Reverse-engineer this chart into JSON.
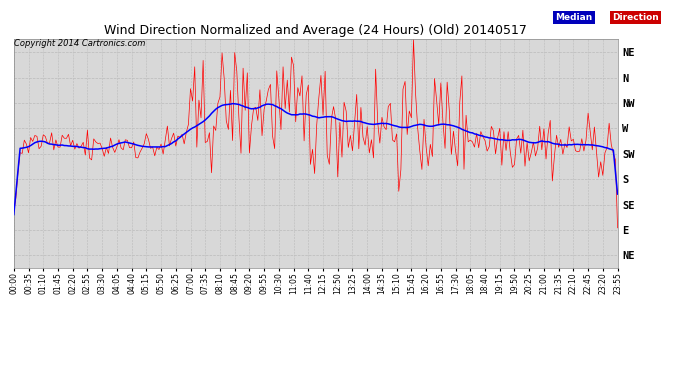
{
  "title": "Wind Direction Normalized and Average (24 Hours) (Old) 20140517",
  "copyright": "Copyright 2014 Cartronics.com",
  "background_color": "#ffffff",
  "plot_bg_color": "#d8d8d8",
  "y_labels": [
    "NE",
    "N",
    "NW",
    "W",
    "SW",
    "S",
    "SE",
    "E",
    "NE"
  ],
  "y_ticks": [
    9,
    8,
    7,
    6,
    5,
    4,
    3,
    2,
    1
  ],
  "ylim": [
    0.5,
    9.5
  ],
  "legend_median_text": "Median",
  "legend_direction_text": "Direction",
  "line_color_median": "#0000ff",
  "line_color_direction": "#ff0000",
  "seed": 42,
  "tick_step": 7
}
